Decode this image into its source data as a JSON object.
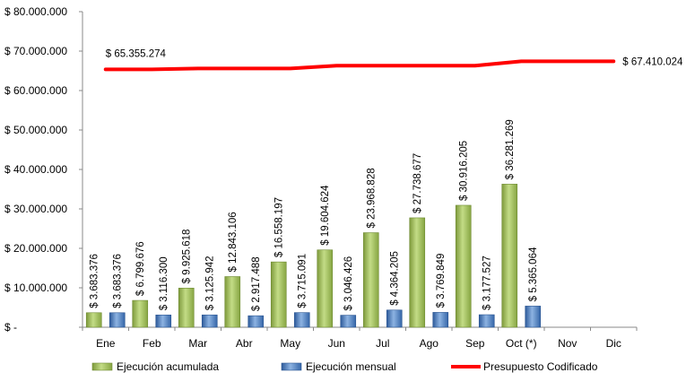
{
  "chart_data": {
    "type": "bar",
    "categories": [
      "Ene",
      "Feb",
      "Mar",
      "Abr",
      "May",
      "Jun",
      "Jul",
      "Ago",
      "Sep",
      "Oct (*)",
      "Nov",
      "Dic"
    ],
    "ylim": [
      0,
      80000000
    ],
    "yticks": [
      0,
      10000000,
      20000000,
      30000000,
      40000000,
      50000000,
      60000000,
      70000000,
      80000000
    ],
    "ytick_labels": [
      "$ -",
      "$ 10.000.000",
      "$ 20.000.000",
      "$ 30.000.000",
      "$ 40.000.000",
      "$ 50.000.000",
      "$ 60.000.000",
      "$ 70.000.000",
      "$ 80.000.000"
    ],
    "grid": false,
    "legend_position": "bottom",
    "series": [
      {
        "name": "Ejecución acumulada",
        "type": "bar",
        "color": "#9BBB59",
        "values": [
          3683376,
          6799676,
          9925618,
          12843106,
          16558197,
          19604624,
          23968828,
          27738677,
          30916205,
          36281269,
          null,
          null
        ],
        "labels": [
          "$ 3.683.376",
          "$ 6.799.676",
          "$ 9.925.618",
          "$ 12.843.106",
          "$ 16.558.197",
          "$ 19.604.624",
          "$ 23.968.828",
          "$ 27.738.677",
          "$ 30.916.205",
          "$ 36.281.269",
          "",
          ""
        ]
      },
      {
        "name": "Ejecución mensual",
        "type": "bar",
        "color": "#4F81BD",
        "values": [
          3683376,
          3116300,
          3125942,
          2917488,
          3715091,
          3046426,
          4364205,
          3769849,
          3177527,
          5365064,
          null,
          null
        ],
        "labels": [
          "$ 3.683.376",
          "$ 3.116.300",
          "$ 3.125.942",
          "$ 2.917.488",
          "$ 3.715.091",
          "$ 3.046.426",
          "$ 4.364.205",
          "$ 3.769.849",
          "$ 3.177.527",
          "$ 5.365.064",
          "",
          ""
        ]
      },
      {
        "name": "Presupuesto Codificado",
        "type": "line",
        "color": "#FF0000",
        "values": [
          65355274,
          65355274,
          65600000,
          65600000,
          65600000,
          66300000,
          66300000,
          66300000,
          66300000,
          67410024,
          67410024,
          67410024
        ],
        "labels": [
          "$ 65.355.274",
          "",
          "",
          "",
          "",
          "",
          "",
          "",
          "",
          "",
          "",
          "$ 67.410.024"
        ]
      }
    ]
  }
}
